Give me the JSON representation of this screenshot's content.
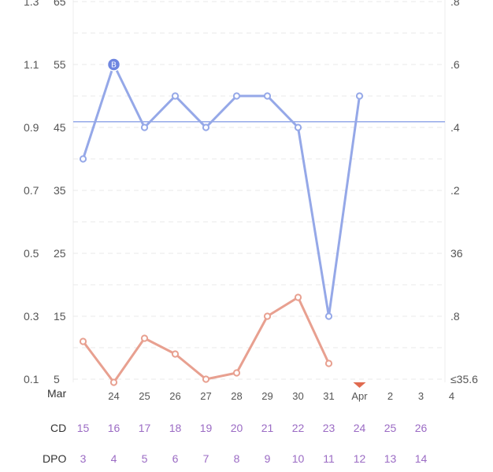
{
  "chart_data": {
    "type": "line",
    "x_ticks": [
      "24",
      "25",
      "26",
      "27",
      "28",
      "29",
      "30",
      "31",
      "Apr",
      "2",
      "3",
      "4"
    ],
    "month_label": "Mar",
    "left_axis_1": [
      "1.1",
      "0.9",
      "0.7",
      "0.5",
      "0.3",
      "0.1"
    ],
    "left_axis_1_partial": "1.3",
    "left_axis_2": [
      "55",
      "45",
      "35",
      "25",
      "15",
      "5"
    ],
    "left_axis_2_partial": "65",
    "right_axis": [
      ".6",
      ".4",
      ".2",
      "36",
      ".8",
      "≤35.6"
    ],
    "right_axis_partial": ".8",
    "ylim": [
      5,
      65
    ],
    "coverline": 45.9,
    "series": [
      {
        "color": "#95a8e8",
        "x": [
          "Mar 23",
          "Mar 24",
          "Mar 25",
          "Mar 26",
          "Mar 27",
          "Mar 28",
          "Mar 29",
          "Mar 30",
          "Mar 31",
          "Apr 1"
        ],
        "values": [
          40,
          55,
          45,
          50,
          45,
          50,
          50,
          45,
          15,
          50
        ],
        "marked_point": "Mar 24",
        "marked_label": "B"
      },
      {
        "color": "#e8a090",
        "x": [
          "Mar 23",
          "Mar 24",
          "Mar 25",
          "Mar 26",
          "Mar 27",
          "Mar 28",
          "Mar 29",
          "Mar 30",
          "Mar 31"
        ],
        "values": [
          11,
          4.5,
          11.5,
          9,
          5,
          6,
          15,
          18,
          7.5
        ]
      }
    ],
    "today_marker": "Apr 1",
    "today_marker_color": "#e06a4f",
    "cd_label": "CD",
    "cd": [
      "15",
      "16",
      "17",
      "18",
      "19",
      "20",
      "21",
      "22",
      "23",
      "24",
      "25",
      "26"
    ],
    "dpo_label": "DPO",
    "dpo": [
      "3",
      "4",
      "5",
      "6",
      "7",
      "8",
      "9",
      "10",
      "11",
      "12",
      "13",
      "14"
    ],
    "grid": true
  }
}
